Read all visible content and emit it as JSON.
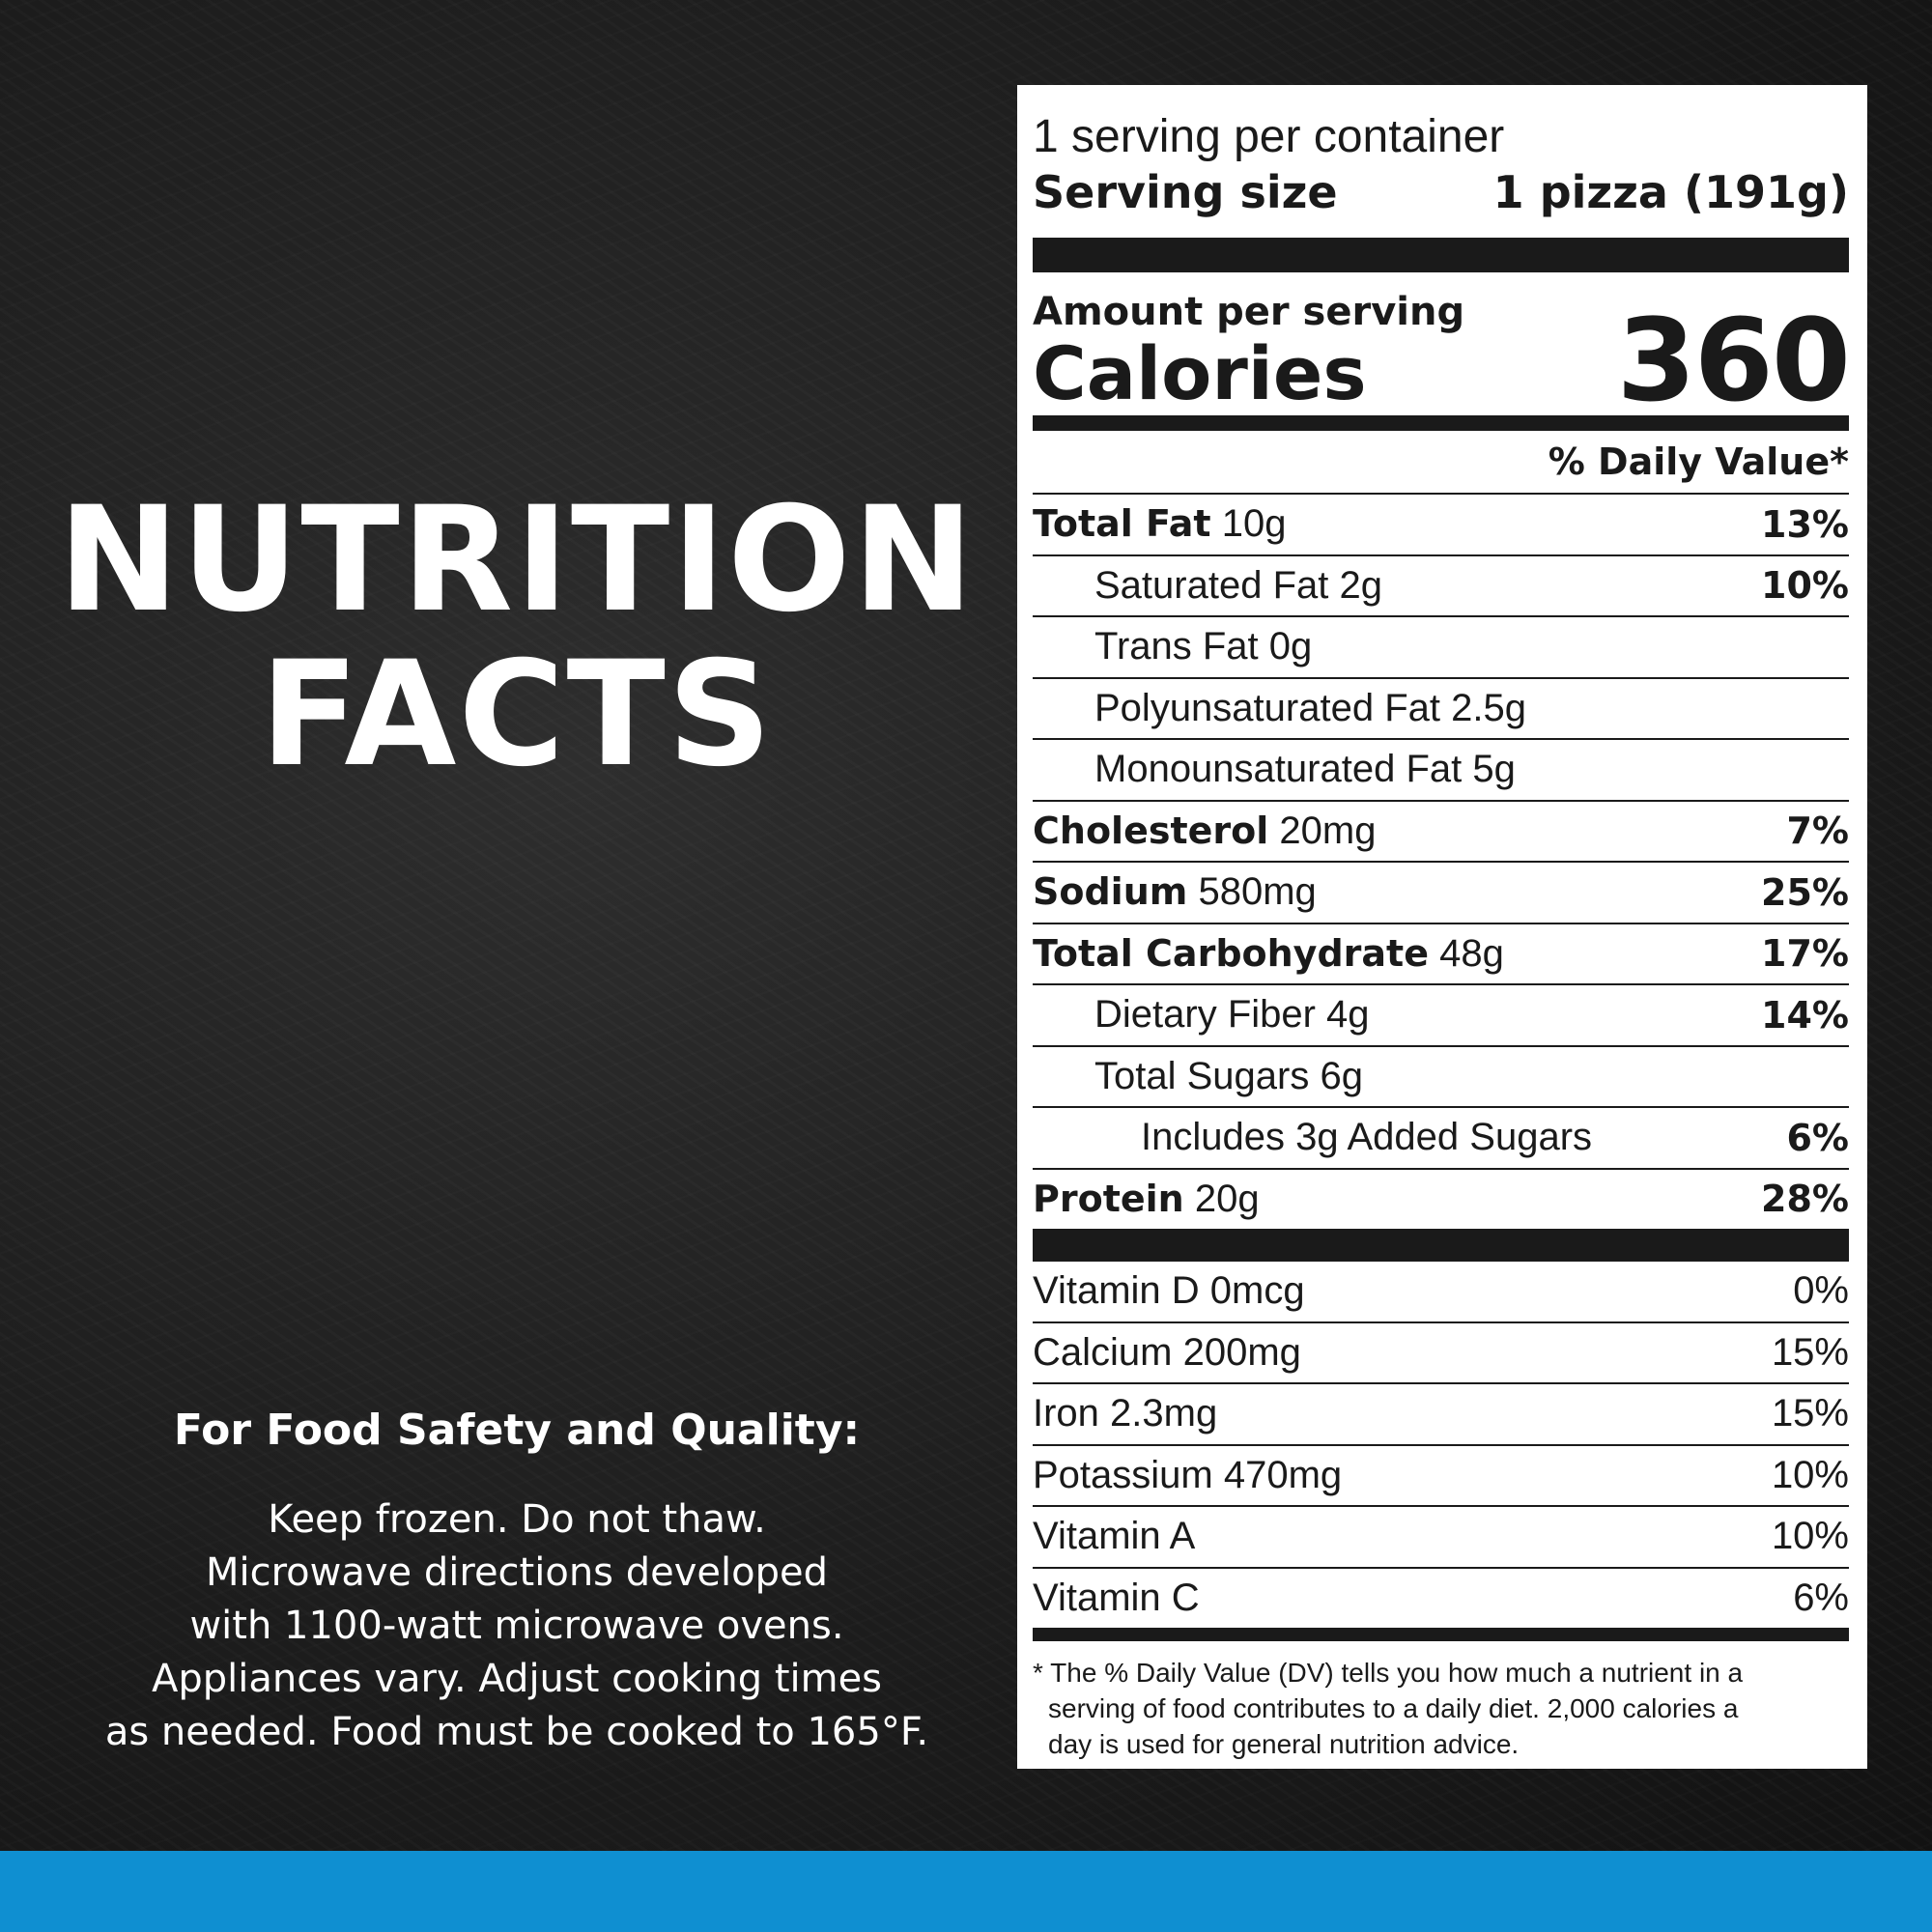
{
  "left": {
    "title_lines": [
      "NUTRITION",
      "FACTS"
    ],
    "safety_heading": "For Food Safety and Quality:",
    "safety_lines": [
      "Keep frozen. Do not thaw.",
      "Microwave directions developed",
      "with 1100-watt microwave ovens.",
      "Appliances vary. Adjust cooking times",
      "as needed. Food must be cooked to 165°F."
    ]
  },
  "label": {
    "servings_per_container": "1 serving per container",
    "serving_size_label": "Serving size",
    "serving_size_value": "1 pizza (191g)",
    "amount_per_serving": "Amount per serving",
    "calories_label": "Calories",
    "calories_value": "360",
    "dv_header": "% Daily Value*",
    "nutrients": [
      {
        "name": "Total Fat",
        "amount": " 10g",
        "dv": "13%"
      },
      {
        "name": "Saturated Fat 2g",
        "amount": "",
        "dv": "10%"
      },
      {
        "name": "Trans Fat 0g",
        "amount": "",
        "dv": ""
      },
      {
        "name": "Polyunsaturated Fat 2.5g",
        "amount": "",
        "dv": ""
      },
      {
        "name": "Monounsaturated Fat 5g",
        "amount": "",
        "dv": ""
      },
      {
        "name": "Cholesterol",
        "amount": " 20mg",
        "dv": "7%"
      },
      {
        "name": "Sodium",
        "amount": " 580mg",
        "dv": "25%"
      },
      {
        "name": "Total Carbohydrate",
        "amount": " 48g",
        "dv": "17%"
      },
      {
        "name": "Dietary Fiber 4g",
        "amount": "",
        "dv": "14%"
      },
      {
        "name": "Total Sugars 6g",
        "amount": "",
        "dv": ""
      },
      {
        "name": "Includes 3g Added Sugars",
        "amount": "",
        "dv": "6%"
      },
      {
        "name": "Protein",
        "amount": " 20g",
        "dv": "28%"
      }
    ],
    "vitamins": [
      {
        "name": "Vitamin D 0mcg",
        "dv": "0%"
      },
      {
        "name": "Calcium 200mg",
        "dv": "15%"
      },
      {
        "name": "Iron 2.3mg",
        "dv": "15%"
      },
      {
        "name": "Potassium 470mg",
        "dv": "10%"
      },
      {
        "name": "Vitamin A",
        "dv": "10%"
      },
      {
        "name": "Vitamin C",
        "dv": "6%"
      }
    ],
    "footnote_lines": [
      "* The % Daily Value (DV) tells you how much a nutrient in a",
      "serving of food contributes to a daily diet. 2,000 calories a",
      "day is used for general nutrition advice."
    ]
  },
  "colors": {
    "background": "#1c1c1c",
    "bottom_bar": "#0f8fd1",
    "label_ink": "#1a1a1a"
  }
}
